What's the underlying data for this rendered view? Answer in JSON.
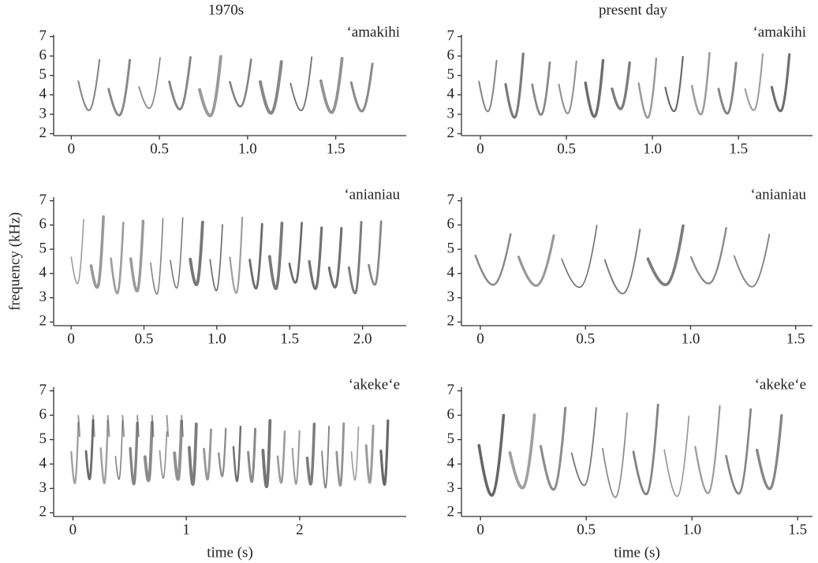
{
  "chart_data": [
    {
      "type": "spectrogram",
      "title": "1970s",
      "label": "ʻamakihi",
      "xlim": [
        -0.1,
        1.9
      ],
      "xticks": [
        0,
        0.5,
        {
          "value": 1,
          "label": "1.0"
        },
        1.5
      ],
      "ylim": [
        1.9,
        7.1
      ],
      "yticks": [
        2,
        3,
        4,
        5,
        6,
        7
      ]
    },
    {
      "type": "spectrogram",
      "title": "present day",
      "label": "ʻamakihi",
      "xlim": [
        -0.11,
        1.93
      ],
      "xticks": [
        0,
        0.5,
        {
          "value": 1,
          "label": "1.0"
        },
        1.5
      ],
      "ylim": [
        1.9,
        7.1
      ],
      "yticks": [
        2,
        3,
        4,
        5,
        6,
        7
      ]
    },
    {
      "type": "spectrogram",
      "label": "ʻanianiau",
      "ylabel": "frequency (kHz)",
      "xlim": [
        -0.12,
        2.3
      ],
      "xticks": [
        0,
        0.5,
        {
          "value": 1,
          "label": "1.0"
        },
        1.5,
        {
          "value": 2,
          "label": "2.0"
        }
      ],
      "ylim": [
        1.85,
        7.15
      ],
      "yticks": [
        2,
        3,
        4,
        5,
        6,
        7
      ]
    },
    {
      "type": "spectrogram",
      "label": "ʻanianiau",
      "xlim": [
        -0.09,
        1.58
      ],
      "xticks": [
        0,
        0.5,
        {
          "value": 1,
          "label": "1.0"
        },
        1.5
      ],
      "ylim": [
        1.85,
        7.15
      ],
      "yticks": [
        2,
        3,
        4,
        5,
        6,
        7
      ]
    },
    {
      "type": "spectrogram",
      "label": "ʻakekeʻe",
      "xlabel": "time (s)",
      "xlim": [
        -0.17,
        2.94
      ],
      "xticks": [
        0,
        1,
        2
      ],
      "ylim": [
        1.85,
        7.15
      ],
      "yticks": [
        2,
        3,
        4,
        5,
        6,
        7
      ]
    },
    {
      "type": "spectrogram",
      "label": "ʻakekeʻe",
      "xlabel": "time (s)",
      "xlim": [
        -0.09,
        1.57
      ],
      "xticks": [
        0,
        0.5,
        {
          "value": 1,
          "label": "1.0"
        },
        1.5
      ],
      "ylim": [
        1.85,
        7.15
      ],
      "yticks": [
        2,
        3,
        4,
        5,
        6,
        7
      ]
    }
  ]
}
